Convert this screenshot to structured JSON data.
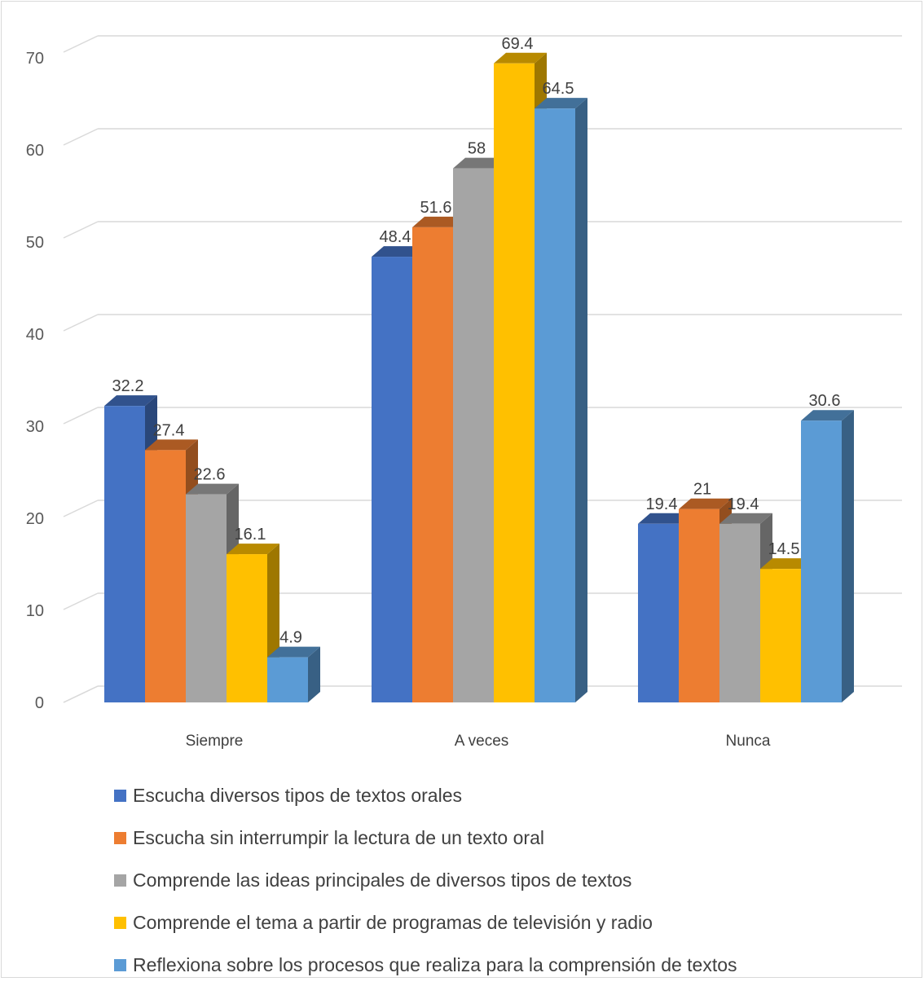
{
  "chart_data": {
    "type": "bar",
    "title": "",
    "xlabel": "",
    "ylabel": "",
    "ylim": [
      0,
      70
    ],
    "yticks": [
      0,
      10,
      20,
      30,
      40,
      50,
      60,
      70
    ],
    "grid": true,
    "legend_position": "bottom",
    "categories": [
      "Siempre",
      "A veces",
      "Nunca"
    ],
    "series": [
      {
        "name": "Escucha diversos tipos de textos orales",
        "color": "#4472C4",
        "values": [
          32.2,
          48.4,
          19.4
        ],
        "labels": [
          "32.2",
          "48.4",
          "19.4"
        ]
      },
      {
        "name": "Escucha sin interrumpir la lectura de un texto oral",
        "color": "#ED7D31",
        "values": [
          27.4,
          51.6,
          21
        ],
        "labels": [
          "27.4",
          "51.6",
          "21"
        ]
      },
      {
        "name": "Comprende las ideas principales de diversos tipos de textos",
        "color": "#A5A5A5",
        "values": [
          22.6,
          58,
          19.4
        ],
        "labels": [
          "22.6",
          "58",
          "19.4"
        ]
      },
      {
        "name": "Comprende el tema a partir de programas de televisión y radio",
        "color": "#FFC000",
        "values": [
          16.1,
          69.4,
          14.5
        ],
        "labels": [
          "16.1",
          "69.4",
          "14.5"
        ]
      },
      {
        "name": "Reflexiona sobre los procesos que realiza para la comprensión de textos",
        "color": "#5B9BD5",
        "values": [
          4.9,
          64.5,
          30.6
        ],
        "labels": [
          "4.9",
          "64.5",
          "30.6"
        ]
      }
    ]
  }
}
